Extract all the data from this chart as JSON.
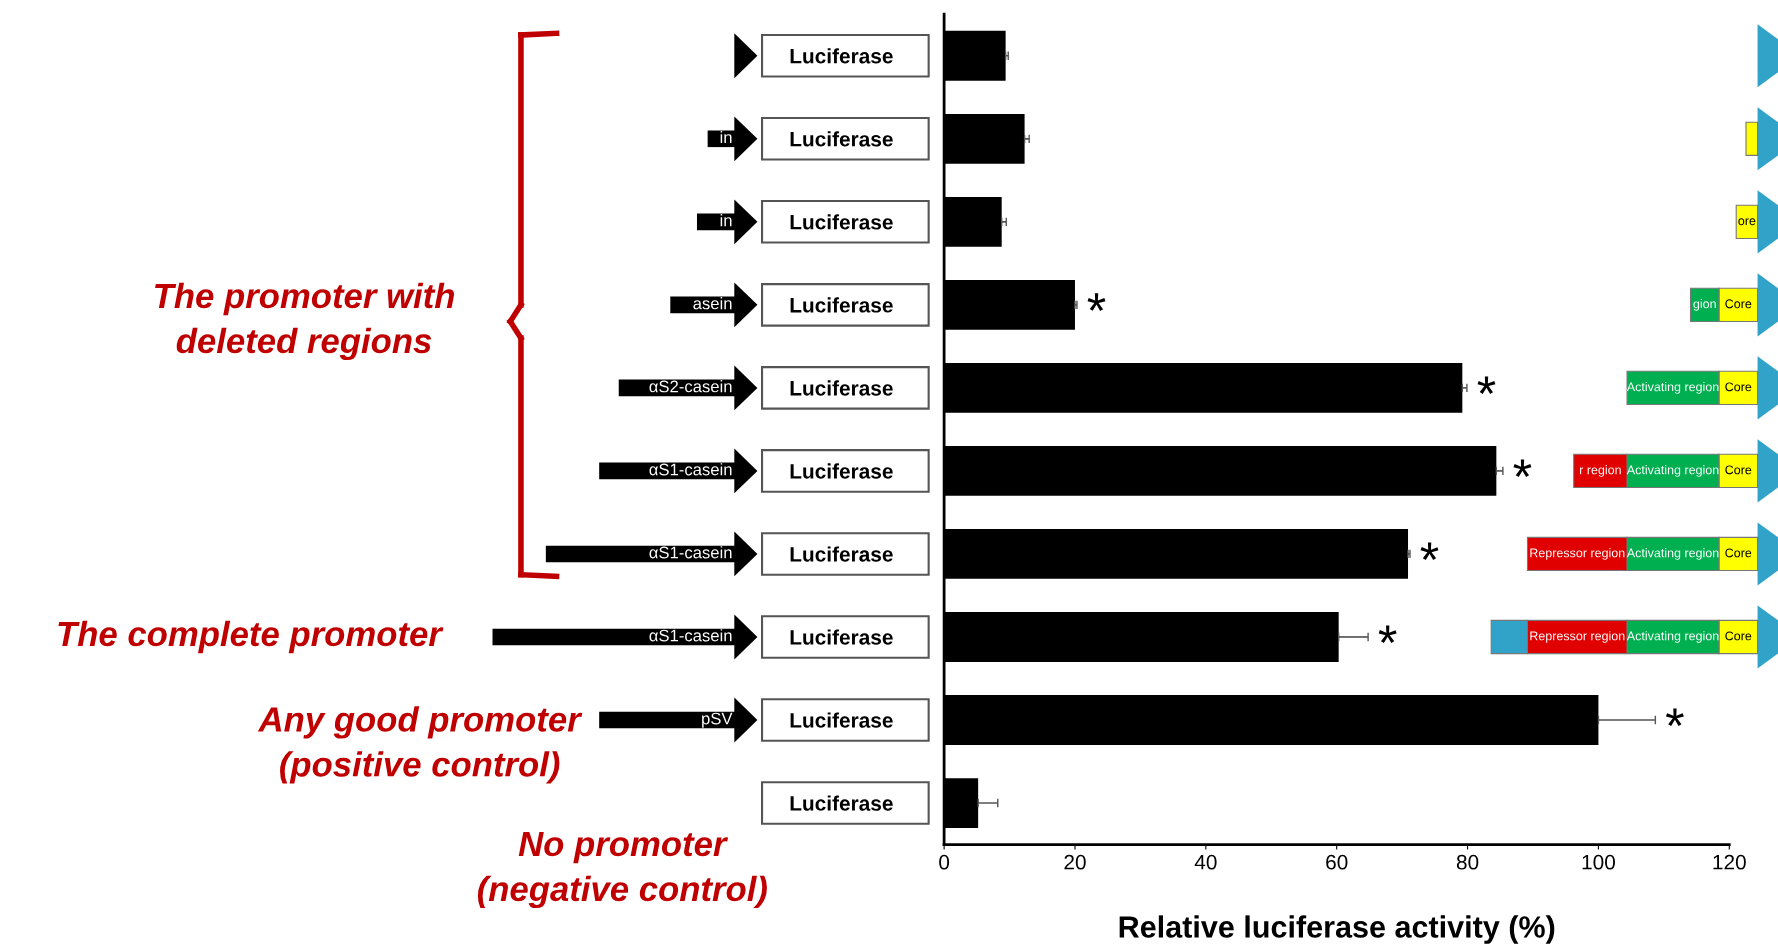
{
  "chart_data": {
    "type": "bar",
    "orientation": "horizontal",
    "xlabel": "Relative luciferase activity (%)",
    "categories": [
      "Luciferase",
      "Luciferase",
      "Luciferase",
      "Luciferase",
      "Luciferase",
      "Luciferase",
      "Luciferase",
      "Luciferase",
      "Luciferase",
      "Luciferase"
    ],
    "values": [
      9.4,
      12.3,
      8.8,
      20,
      79.2,
      84.4,
      70.9,
      60.3,
      100,
      5.2
    ],
    "errors": [
      0.4,
      0.7,
      0.7,
      0.3,
      0.7,
      1,
      0.3,
      4.5,
      8.7,
      3
    ],
    "value_labels": [
      null,
      null,
      null,
      "*",
      "*",
      "*",
      "*",
      "*",
      "*",
      null
    ],
    "color": "#000000",
    "xlim": [
      0,
      120
    ],
    "xticks": [
      0,
      20,
      40,
      60,
      80,
      100,
      120
    ],
    "grid": false,
    "annotations": [
      "in",
      "in",
      "asein",
      "αS2-casein",
      "αS1-casein",
      "αS1-casein",
      "αS1-casein",
      "pSV",
      "ore",
      "gion",
      "Core",
      "Activating region",
      "Core",
      "r region",
      "Activating region",
      "Core",
      "Repressor region",
      "Activating region",
      "Core",
      "Repressor region",
      "Activating region",
      "Core",
      "The promoter with\ndeleted regions",
      "The complete promoter",
      "Any good promoter\n(positive control)",
      "No promoter\n(negative control)"
    ]
  }
}
